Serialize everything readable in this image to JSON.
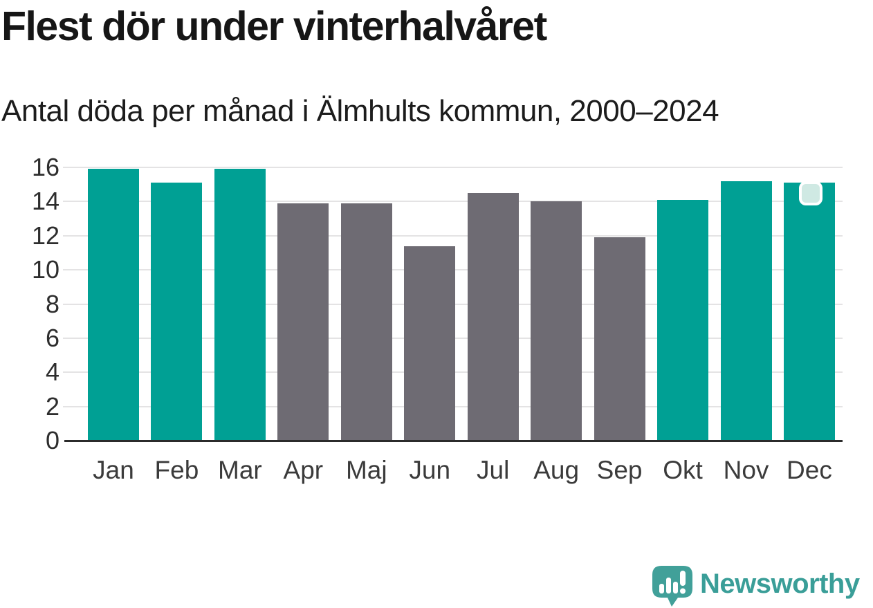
{
  "header": {
    "title": "Flest dör under vinterhalvåret",
    "subtitle": "Antal döda per månad i Älmhults kommun, 2000–2024"
  },
  "chart_data": {
    "type": "bar",
    "categories": [
      "Jan",
      "Feb",
      "Mar",
      "Apr",
      "Maj",
      "Jun",
      "Jul",
      "Aug",
      "Sep",
      "Okt",
      "Nov",
      "Dec"
    ],
    "values": [
      15.9,
      15.1,
      15.9,
      13.9,
      13.9,
      11.4,
      14.5,
      14.0,
      11.9,
      14.1,
      15.2,
      15.1
    ],
    "bar_groups": [
      "winter",
      "winter",
      "winter",
      "summer",
      "summer",
      "summer",
      "summer",
      "summer",
      "summer",
      "winter",
      "winter",
      "winter"
    ],
    "title": "Flest dör under vinterhalvåret",
    "subtitle": "Antal döda per månad i Älmhults kommun, 2000–2024",
    "xlabel": "",
    "ylabel": "",
    "ylim": [
      0,
      16
    ],
    "yticks": [
      0,
      2,
      4,
      6,
      8,
      10,
      12,
      14,
      16
    ],
    "grid": true,
    "legend": false,
    "colors": {
      "winter": "#00a094",
      "summer": "#6e6b73",
      "gridline": "#e4e3e4",
      "axis": "#2b2b2b",
      "marker_fill": "#cfe9e3",
      "marker_border": "#ffffff"
    }
  },
  "footer": {
    "brand": "Newsworthy",
    "brand_color": "#3a9e98"
  }
}
